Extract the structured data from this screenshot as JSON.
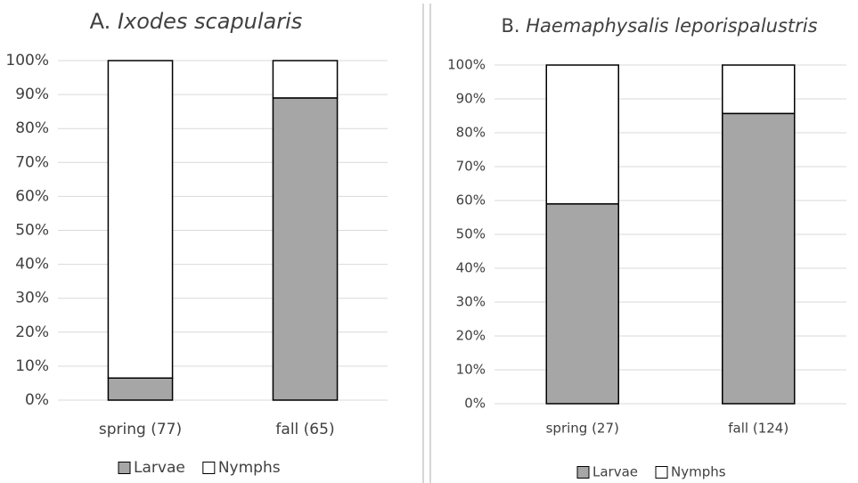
{
  "chart_data": [
    {
      "type": "bar",
      "stacked": true,
      "label": "A.",
      "title": "Ixodes scapularis",
      "categories": [
        "spring (77)",
        "fall (65)"
      ],
      "series": [
        {
          "name": "Larvae",
          "color": "#a6a6a6",
          "values": [
            6.5,
            89
          ]
        },
        {
          "name": "Nymphs",
          "color": "#ffffff",
          "values": [
            93.5,
            11
          ]
        }
      ],
      "ylim": [
        0,
        100
      ],
      "yticks": [
        {
          "value": 0,
          "label": "0%"
        },
        {
          "value": 10,
          "label": "10%"
        },
        {
          "value": 20,
          "label": "20%"
        },
        {
          "value": 30,
          "label": "30%"
        },
        {
          "value": 40,
          "label": "40%"
        },
        {
          "value": 50,
          "label": "50%"
        },
        {
          "value": 60,
          "label": "60%"
        },
        {
          "value": 70,
          "label": "70%"
        },
        {
          "value": 80,
          "label": "80%"
        },
        {
          "value": 90,
          "label": "90%"
        },
        {
          "value": 100,
          "label": "100%"
        }
      ],
      "grid": true,
      "legend": "bottom"
    },
    {
      "type": "bar",
      "stacked": true,
      "label": "B.",
      "title": "Haemaphysalis leporispalustris",
      "categories": [
        "spring (27)",
        "fall (124)"
      ],
      "series": [
        {
          "name": "Larvae",
          "color": "#a6a6a6",
          "values": [
            59,
            85.7
          ]
        },
        {
          "name": "Nymphs",
          "color": "#ffffff",
          "values": [
            41,
            14.3
          ]
        }
      ],
      "ylim": [
        0,
        100
      ],
      "yticks": [
        {
          "value": 0,
          "label": "0%"
        },
        {
          "value": 10,
          "label": "10%"
        },
        {
          "value": 20,
          "label": "20%"
        },
        {
          "value": 30,
          "label": "30%"
        },
        {
          "value": 40,
          "label": "40%"
        },
        {
          "value": 50,
          "label": "50%"
        },
        {
          "value": 60,
          "label": "60%"
        },
        {
          "value": 70,
          "label": "70%"
        },
        {
          "value": 80,
          "label": "80%"
        },
        {
          "value": 90,
          "label": "90%"
        },
        {
          "value": 100,
          "label": "100%"
        }
      ],
      "grid": true,
      "legend": "bottom"
    }
  ]
}
